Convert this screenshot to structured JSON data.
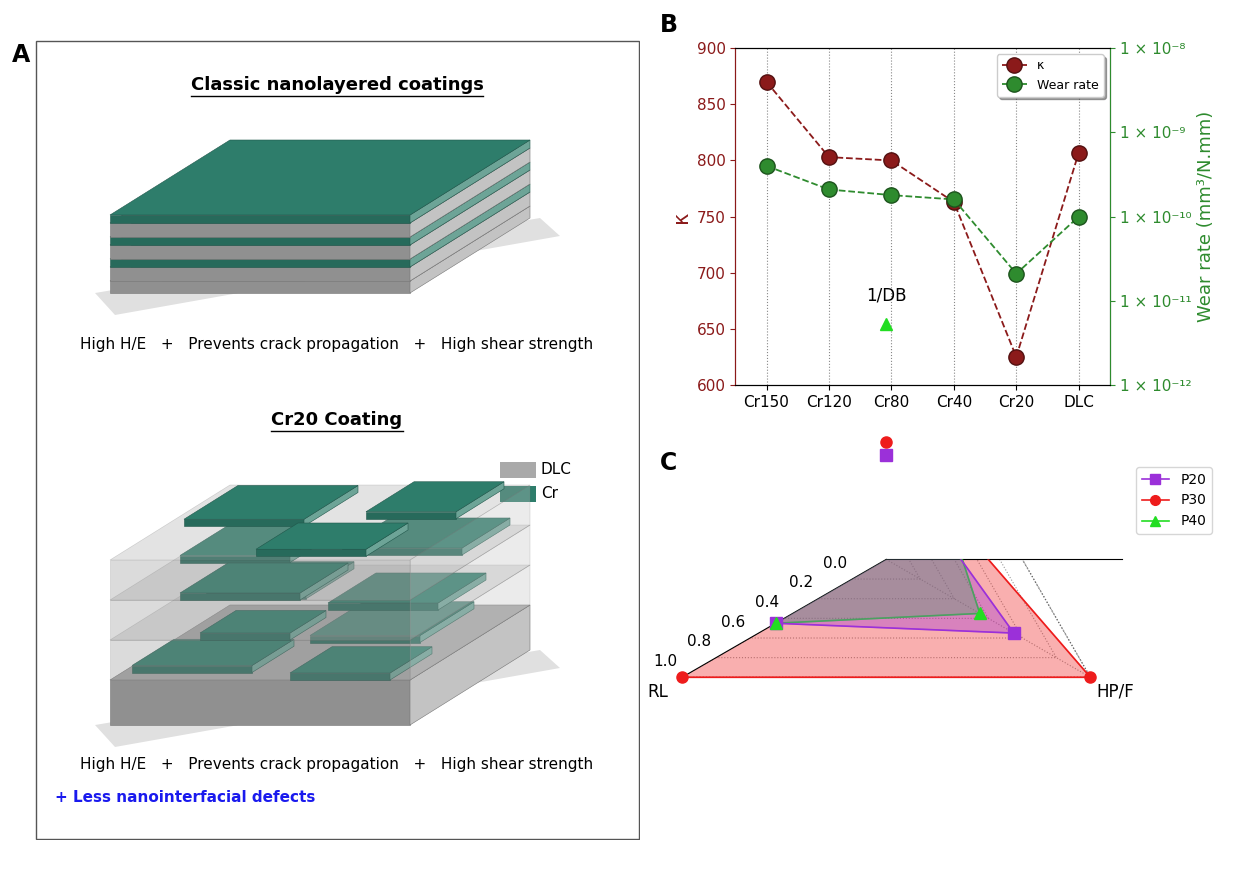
{
  "diagram": {
    "panel_label": "A",
    "classic": {
      "title": "Classic nanolayered coatings",
      "caption": "High H/E   +   Prevents crack propagation   +   High shear strength"
    },
    "cr20": {
      "title": "Cr20 Coating",
      "caption": "High H/E   +   Prevents crack propagation   +   High shear strength",
      "note": "+ Less nanointerfacial defects",
      "note_color": "#1a1aee"
    },
    "legend": [
      {
        "name": "DLC",
        "color": "#a9a9a9"
      },
      {
        "name": "Cr",
        "color": "#2e7d6b"
      }
    ]
  },
  "chart_data": [
    {
      "panel_label": "B",
      "type": "line",
      "categories": [
        "Cr150",
        "Cr120",
        "Cr80",
        "Cr40",
        "Cr20",
        "DLC"
      ],
      "ylabel": "κ",
      "ylim": [
        600,
        900
      ],
      "yticks": [
        600,
        650,
        700,
        750,
        800,
        850,
        900
      ],
      "y2label": "Wear rate (mm³/N.mm)",
      "y2lim": [
        1e-12,
        1e-08
      ],
      "y2ticks": [
        {
          "value": 1e-12,
          "label": "1 × 10⁻¹²"
        },
        {
          "value": 1e-11,
          "label": "1 × 10⁻¹¹"
        },
        {
          "value": 1e-10,
          "label": "1 × 10⁻¹⁰"
        },
        {
          "value": 1e-09,
          "label": "1 × 10⁻⁹"
        },
        {
          "value": 1e-08,
          "label": "1 × 10⁻⁸"
        }
      ],
      "log": "y2",
      "grid": "x",
      "legend": "upper right",
      "series": [
        {
          "name": "κ",
          "color": "#8b1a1a",
          "marker": "o",
          "line_style": "dashed",
          "values": [
            870,
            803,
            800,
            763,
            625,
            807
          ]
        },
        {
          "name": "Wear rate",
          "color": "#2e8b2e",
          "marker": "o",
          "line_style": "dashed",
          "axis": "y2",
          "values": [
            4e-10,
            2.1e-10,
            1.8e-10,
            1.6e-10,
            2.1e-11,
            1e-10
          ]
        }
      ]
    },
    {
      "panel_label": "C",
      "type": "radar",
      "categories": [
        "1/DB",
        "HP/F",
        "RL"
      ],
      "ylim": [
        -0.2,
        1.0
      ],
      "yticks": [
        0.0,
        0.2,
        0.4,
        0.6,
        0.8,
        1.0
      ],
      "grid": true,
      "legend": "upper right",
      "series": [
        {
          "name": "P20",
          "color": "#9b30d9",
          "marker": "s",
          "values": [
            0.33,
            0.55,
            0.45
          ]
        },
        {
          "name": "P30",
          "color": "#ee1c1c",
          "marker": "o",
          "values": [
            0.4,
            1.0,
            1.0
          ]
        },
        {
          "name": "P40",
          "color": "#22dd22",
          "marker": "^",
          "values": [
            1.0,
            0.35,
            0.45
          ]
        }
      ]
    }
  ]
}
